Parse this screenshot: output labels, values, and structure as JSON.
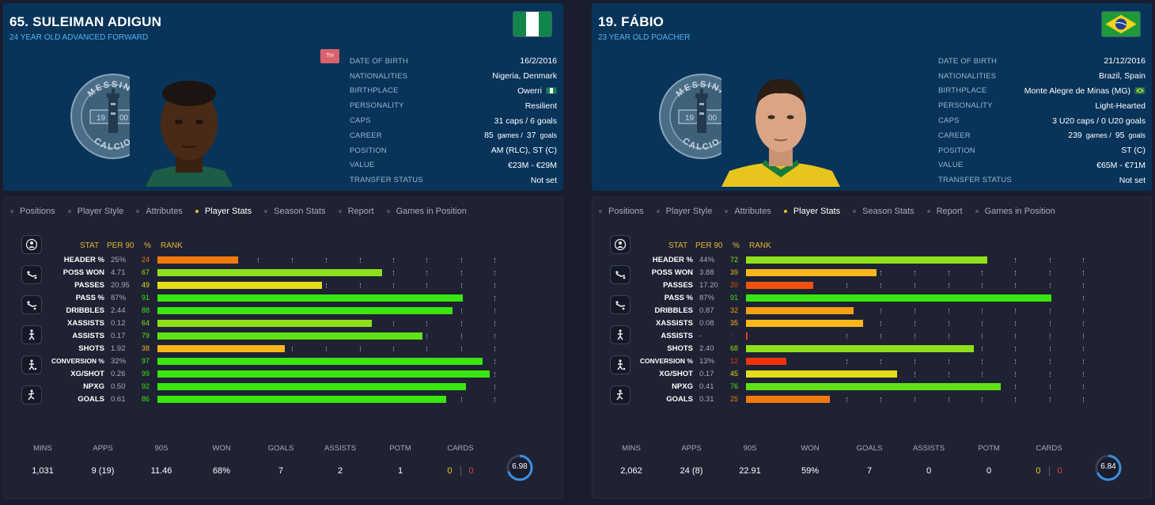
{
  "players": [
    {
      "name": "65. SULEIMAN ADIGUN",
      "subtitle": "24 YEAR OLD  ADVANCED FORWARD",
      "flag_icon": "nigeria-flag-icon",
      "badge_text": {
        "top": "MESSINA",
        "bottom": "CALCIO",
        "left": "19",
        "right": "00"
      },
      "trv": "Trv",
      "info": [
        {
          "key": "DATE OF BIRTH",
          "val": "16/2/2016"
        },
        {
          "key": "NATIONALITIES",
          "val": "Nigeria, Denmark"
        },
        {
          "key": "BIRTHPLACE",
          "val": "Owerri"
        },
        {
          "key": "PERSONALITY",
          "val": "Resilient"
        },
        {
          "key": "CAPS",
          "val": "31 caps / 6 goals"
        },
        {
          "key": "CAREER",
          "games": "85",
          "games_label": "games /",
          "goals": "37",
          "goals_label": "goals"
        },
        {
          "key": "POSITION",
          "val": "AM (RLC), ST (C)"
        },
        {
          "key": "VALUE",
          "val": "€23M - €29M"
        },
        {
          "key": "TRANSFER STATUS",
          "val": "Not set"
        }
      ],
      "tabs": [
        "Positions",
        "Player Style",
        "Attributes",
        "Player Stats",
        "Season Stats",
        "Report",
        "Games in Position"
      ],
      "active_tab": "Player Stats",
      "stats_header": {
        "stat": "STAT",
        "per90": "PER 90",
        "pct": "%",
        "rank": "RANK"
      },
      "stats": [
        {
          "label": "HEADER %",
          "per90": "25%",
          "pct": 24,
          "color": "#f27a0c"
        },
        {
          "label": "POSS WON",
          "per90": "4.71",
          "pct": 67,
          "color": "#8ee01b"
        },
        {
          "label": "PASSES",
          "per90": "20.95",
          "pct": 49,
          "color": "#e5dc1a"
        },
        {
          "label": "PASS %",
          "per90": "87%",
          "pct": 91,
          "color": "#39e60e"
        },
        {
          "label": "DRIBBLES",
          "per90": "2.44",
          "pct": 88,
          "color": "#39e60e"
        },
        {
          "label": "XASSISTS",
          "per90": "0.12",
          "pct": 64,
          "color": "#8ee01b"
        },
        {
          "label": "ASSISTS",
          "per90": "0.17",
          "pct": 79,
          "color": "#5fe316"
        },
        {
          "label": "SHOTS",
          "per90": "1.92",
          "pct": 38,
          "color": "#f8b71a"
        },
        {
          "label": "CONVERSION %",
          "per90": "32%",
          "pct": 97,
          "color": "#39e60e"
        },
        {
          "label": "XG/SHOT",
          "per90": "0.26",
          "pct": 99,
          "color": "#39e60e"
        },
        {
          "label": "NPXG",
          "per90": "0.50",
          "pct": 92,
          "color": "#39e60e"
        },
        {
          "label": "GOALS",
          "per90": "0.61",
          "pct": 86,
          "color": "#39e60e"
        }
      ],
      "summary": [
        {
          "key": "MINS",
          "val": "1,031"
        },
        {
          "key": "APPS",
          "val": "9 (19)"
        },
        {
          "key": "90S",
          "val": "11.46"
        },
        {
          "key": "WON",
          "val": "68%"
        },
        {
          "key": "GOALS",
          "val": "7"
        },
        {
          "key": "ASSISTS",
          "val": "2"
        },
        {
          "key": "POTM",
          "val": "1"
        }
      ],
      "cards": {
        "key": "CARDS",
        "yellow": "0",
        "red": "0"
      },
      "rating": "6.98",
      "rating_fraction": 0.7
    },
    {
      "name": "19. FÁBIO",
      "subtitle": "23 YEAR OLD POACHER",
      "flag_icon": "brazil-flag-icon",
      "badge_text": {
        "top": "MESSINA",
        "bottom": "CALCIO",
        "left": "19",
        "right": "00"
      },
      "trv": "",
      "info": [
        {
          "key": "DATE OF BIRTH",
          "val": "21/12/2016"
        },
        {
          "key": "NATIONALITIES",
          "val": "Brazil, Spain"
        },
        {
          "key": "BIRTHPLACE",
          "val": "Monte Alegre de Minas (MG)"
        },
        {
          "key": "PERSONALITY",
          "val": "Light-Hearted"
        },
        {
          "key": "CAPS",
          "val": "3 U20 caps / 0 U20 goals"
        },
        {
          "key": "CAREER",
          "games": "239",
          "games_label": "games /",
          "goals": "95",
          "goals_label": "goals"
        },
        {
          "key": "POSITION",
          "val": "ST (C)"
        },
        {
          "key": "VALUE",
          "val": "€65M - €71M"
        },
        {
          "key": "TRANSFER STATUS",
          "val": "Not set"
        }
      ],
      "tabs": [
        "Positions",
        "Player Style",
        "Attributes",
        "Player Stats",
        "Season Stats",
        "Report",
        "Games in Position"
      ],
      "active_tab": "Player Stats",
      "stats_header": {
        "stat": "STAT",
        "per90": "PER 90",
        "pct": "%",
        "rank": "RANK"
      },
      "stats": [
        {
          "label": "HEADER %",
          "per90": "44%",
          "pct": 72,
          "color": "#8ee01b"
        },
        {
          "label": "POSS WON",
          "per90": "3.88",
          "pct": 39,
          "color": "#f8b71a"
        },
        {
          "label": "PASSES",
          "per90": "17.20",
          "pct": 20,
          "color": "#f0520e"
        },
        {
          "label": "PASS %",
          "per90": "87%",
          "pct": 91,
          "color": "#39e60e"
        },
        {
          "label": "DRIBBLES",
          "per90": "0.87",
          "pct": 32,
          "color": "#f89f14"
        },
        {
          "label": "XASSISTS",
          "per90": "0.08",
          "pct": 35,
          "color": "#f8b71a"
        },
        {
          "label": "ASSISTS",
          "per90": "-",
          "pct": "-",
          "color": "#e8391c"
        },
        {
          "label": "SHOTS",
          "per90": "2.40",
          "pct": 68,
          "color": "#8ee01b"
        },
        {
          "label": "CONVERSION %",
          "per90": "13%",
          "pct": 12,
          "color": "#f0330e"
        },
        {
          "label": "XG/SHOT",
          "per90": "0.17",
          "pct": 45,
          "color": "#e5dc1a"
        },
        {
          "label": "NPXG",
          "per90": "0.41",
          "pct": 76,
          "color": "#5fe316"
        },
        {
          "label": "GOALS",
          "per90": "0.31",
          "pct": 25,
          "color": "#f27a0c"
        }
      ],
      "summary": [
        {
          "key": "MINS",
          "val": "2,062"
        },
        {
          "key": "APPS",
          "val": "24 (8)"
        },
        {
          "key": "90S",
          "val": "22.91"
        },
        {
          "key": "WON",
          "val": "59%"
        },
        {
          "key": "GOALS",
          "val": "7"
        },
        {
          "key": "ASSISTS",
          "val": "0"
        },
        {
          "key": "POTM",
          "val": "0"
        }
      ],
      "cards": {
        "key": "CARDS",
        "yellow": "0",
        "red": "0"
      },
      "rating": "6.84",
      "rating_fraction": 0.68
    }
  ]
}
